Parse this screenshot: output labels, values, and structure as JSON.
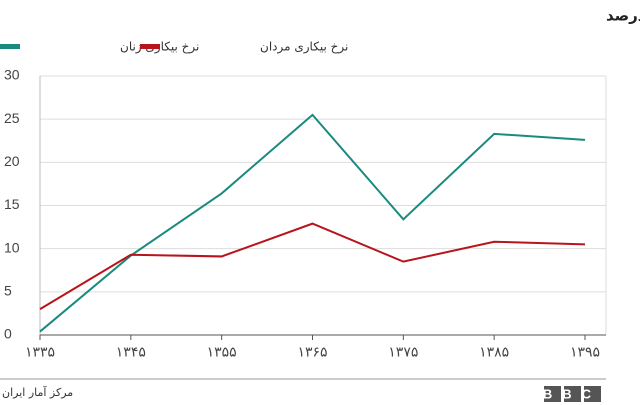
{
  "chart_data": {
    "type": "line",
    "title": "نرخ بیکاری جمعیت بالای ده سال به درصد",
    "categories": [
      "۱۳۳۵",
      "۱۳۴۵",
      "۱۳۵۵",
      "۱۳۶۵",
      "۱۳۷۵",
      "۱۳۸۵",
      "۱۳۹۵"
    ],
    "series": [
      {
        "name": "نرخ بیکاری زنان",
        "color": "#1a8a7f",
        "values": [
          0.4,
          9.2,
          16.4,
          25.5,
          13.4,
          23.3,
          22.6
        ]
      },
      {
        "name": "نرخ بیکاری مردان",
        "color": "#b8141b",
        "values": [
          3.0,
          9.3,
          9.1,
          12.9,
          8.5,
          10.8,
          10.5
        ]
      }
    ],
    "ylim": [
      0,
      30
    ],
    "yticks": [
      0,
      5,
      10,
      15,
      20,
      25,
      30
    ],
    "grid": true,
    "source": "مرکز آمار ایران",
    "logo": "BBC"
  }
}
